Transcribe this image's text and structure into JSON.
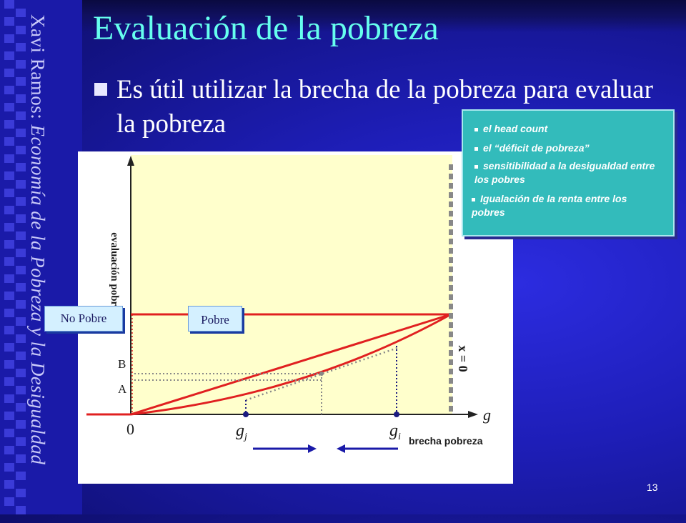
{
  "slide": {
    "title": "Evaluación de la pobreza",
    "bullet": "Es útil utilizar la brecha de la pobreza para evaluar la pobreza",
    "author_name": "Xavi Ramos:",
    "author_course": "Economía de la Pobreza y la Desigualdad",
    "page_number": "13"
  },
  "legend": {
    "items": [
      "el head count",
      "el “déficit de pobreza”",
      "sensitibilidad a la desigualdad entre los pobres",
      "Igualación de la renta entre los pobres"
    ]
  },
  "diagram": {
    "y_axis_label": "evaluación pobreza",
    "x_axis_label": "g",
    "x_axis_sublabel": "brecha pobreza",
    "origin_label": "0",
    "point_gj": "g",
    "point_gj_sub": "j",
    "point_gi": "g",
    "point_gi_sub": "i",
    "label_A": "A",
    "label_B": "B",
    "vertical_line_label": "x = 0",
    "tag_no_pobre": "No Pobre",
    "tag_pobre": "Pobre"
  },
  "colors": {
    "title": "#66ffee",
    "plot_fill": "#ffffcc",
    "curve": "#e02020",
    "dotted_gray": "#888888",
    "dotted_blue": "#1a1a80",
    "legend_bg": "#33bbbb"
  }
}
